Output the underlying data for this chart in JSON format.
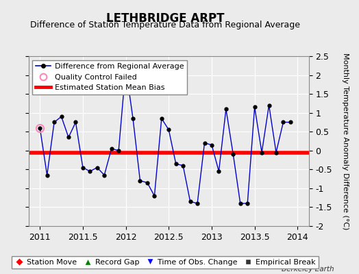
{
  "title": "LETHBRIDGE ARPT",
  "subtitle": "Difference of Station Temperature Data from Regional Average",
  "ylabel": "Monthly Temperature Anomaly Difference (°C)",
  "watermark": "Berkeley Earth",
  "xlim": [
    2010.87,
    2014.13
  ],
  "ylim": [
    -2.0,
    2.5
  ],
  "yticks": [
    -2.0,
    -1.5,
    -1.0,
    -0.5,
    0.0,
    0.5,
    1.0,
    1.5,
    2.0,
    2.5
  ],
  "ytick_labels": [
    "-2",
    "-1.5",
    "-1",
    "-0.5",
    "0",
    "0.5",
    "1",
    "1.5",
    "2",
    "2.5"
  ],
  "xticks": [
    2011.0,
    2011.5,
    2012.0,
    2012.5,
    2013.0,
    2013.5,
    2014.0
  ],
  "xtick_labels": [
    "2011",
    "2011.5",
    "2012",
    "2012.5",
    "2013",
    "2013.5",
    "2014"
  ],
  "mean_bias": -0.05,
  "line_color": "#0000CC",
  "bias_color": "#FF0000",
  "background_color": "#EBEBEB",
  "plot_bg_color": "#EBEBEB",
  "grid_color": "#FFFFFF",
  "qc_fail_x": [
    2011.0
  ],
  "qc_fail_y": [
    0.6
  ],
  "x_data": [
    2011.0,
    2011.0833,
    2011.1667,
    2011.25,
    2011.3333,
    2011.4167,
    2011.5,
    2011.5833,
    2011.6667,
    2011.75,
    2011.8333,
    2011.9167,
    2012.0,
    2012.0833,
    2012.1667,
    2012.25,
    2012.3333,
    2012.4167,
    2012.5,
    2012.5833,
    2012.6667,
    2012.75,
    2012.8333,
    2012.9167,
    2013.0,
    2013.0833,
    2013.1667,
    2013.25,
    2013.3333,
    2013.4167,
    2013.5,
    2013.5833,
    2013.6667,
    2013.75,
    2013.8333,
    2013.9167
  ],
  "y_data": [
    0.6,
    -0.65,
    0.75,
    0.9,
    0.35,
    0.75,
    -0.45,
    -0.55,
    -0.45,
    -0.65,
    0.05,
    0.0,
    2.2,
    0.85,
    -0.8,
    -0.85,
    -1.2,
    0.85,
    0.55,
    -0.35,
    -0.4,
    -1.35,
    -1.4,
    0.2,
    0.15,
    -0.55,
    1.1,
    -0.1,
    -1.4,
    -1.4,
    1.15,
    -0.05,
    1.2,
    -0.05,
    0.75,
    0.75
  ],
  "title_fontsize": 12,
  "subtitle_fontsize": 9,
  "tick_fontsize": 9,
  "ylabel_fontsize": 8,
  "legend_fontsize": 8
}
